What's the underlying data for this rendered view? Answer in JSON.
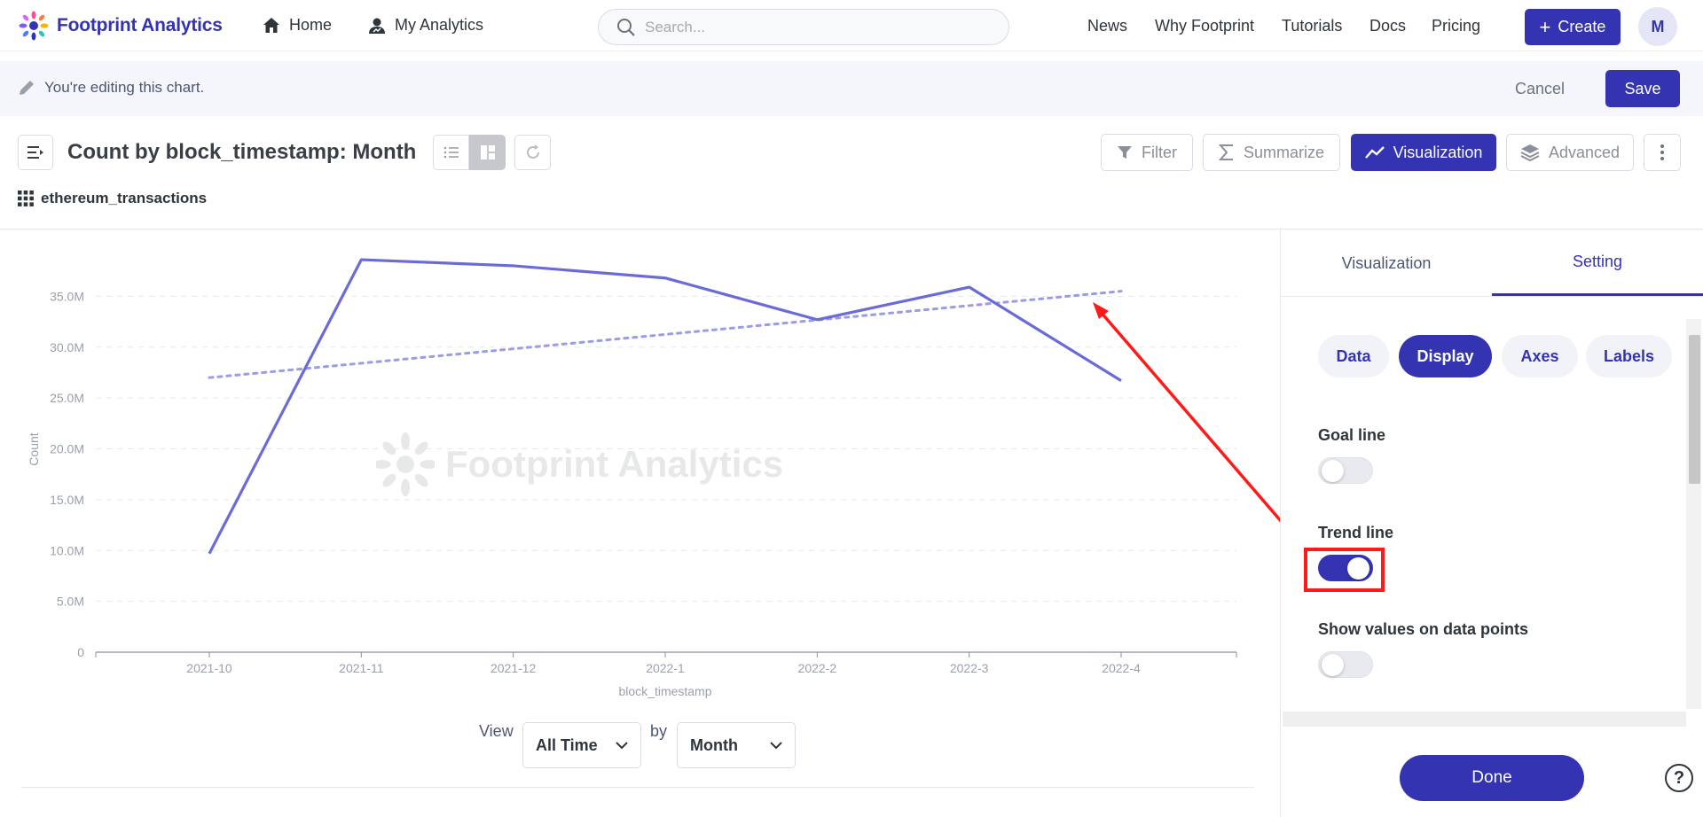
{
  "nav": {
    "logo_text": "Footprint Analytics",
    "home": "Home",
    "my_analytics": "My Analytics",
    "search_placeholder": "Search...",
    "links": [
      "News",
      "Why Footprint",
      "Tutorials",
      "Docs",
      "Pricing"
    ],
    "create": "Create",
    "avatar": "M"
  },
  "editbar": {
    "message": "You're editing this chart.",
    "cancel": "Cancel",
    "save": "Save"
  },
  "header": {
    "title": "Count by block_timestamp: Month",
    "datasource": "ethereum_transactions",
    "filter": "Filter",
    "summarize": "Summarize",
    "visualization": "Visualization",
    "advanced": "Advanced"
  },
  "chart_data": {
    "type": "line",
    "categories": [
      "2021-10",
      "2021-11",
      "2021-12",
      "2022-1",
      "2022-2",
      "2022-3",
      "2022-4"
    ],
    "series": [
      {
        "values": [
          9700000,
          38600000,
          38000000,
          36800000,
          32700000,
          35900000,
          26700000
        ],
        "color": "#6b6bd8"
      }
    ],
    "trend_line": {
      "start": 27000000,
      "end": 35500000,
      "color": "#9b9be6",
      "style": "dotted"
    },
    "xlabel": "block_timestamp",
    "ylabel": "Count",
    "y_ticks": [
      "0",
      "5.0M",
      "10.0M",
      "15.0M",
      "20.0M",
      "25.0M",
      "30.0M",
      "35.0M"
    ],
    "ylim": [
      0,
      40000000
    ],
    "grid": true,
    "watermark": "Footprint Analytics"
  },
  "view_controls": {
    "view_label": "View",
    "range": "All Time",
    "by_label": "by",
    "unit": "Month"
  },
  "panel": {
    "tabs": [
      "Visualization",
      "Setting"
    ],
    "active_tab": "Setting",
    "pills": [
      "Data",
      "Display",
      "Axes",
      "Labels"
    ],
    "active_pill": "Display",
    "settings": [
      {
        "label": "Goal line",
        "on": false
      },
      {
        "label": "Trend line",
        "on": true
      },
      {
        "label": "Show values on data points",
        "on": false
      }
    ],
    "done": "Done",
    "help": "?"
  },
  "colors": {
    "accent": "#3434b2",
    "line": "#6b6bd8",
    "trend": "#9b9be6",
    "annotation": "#ff1a1a"
  }
}
